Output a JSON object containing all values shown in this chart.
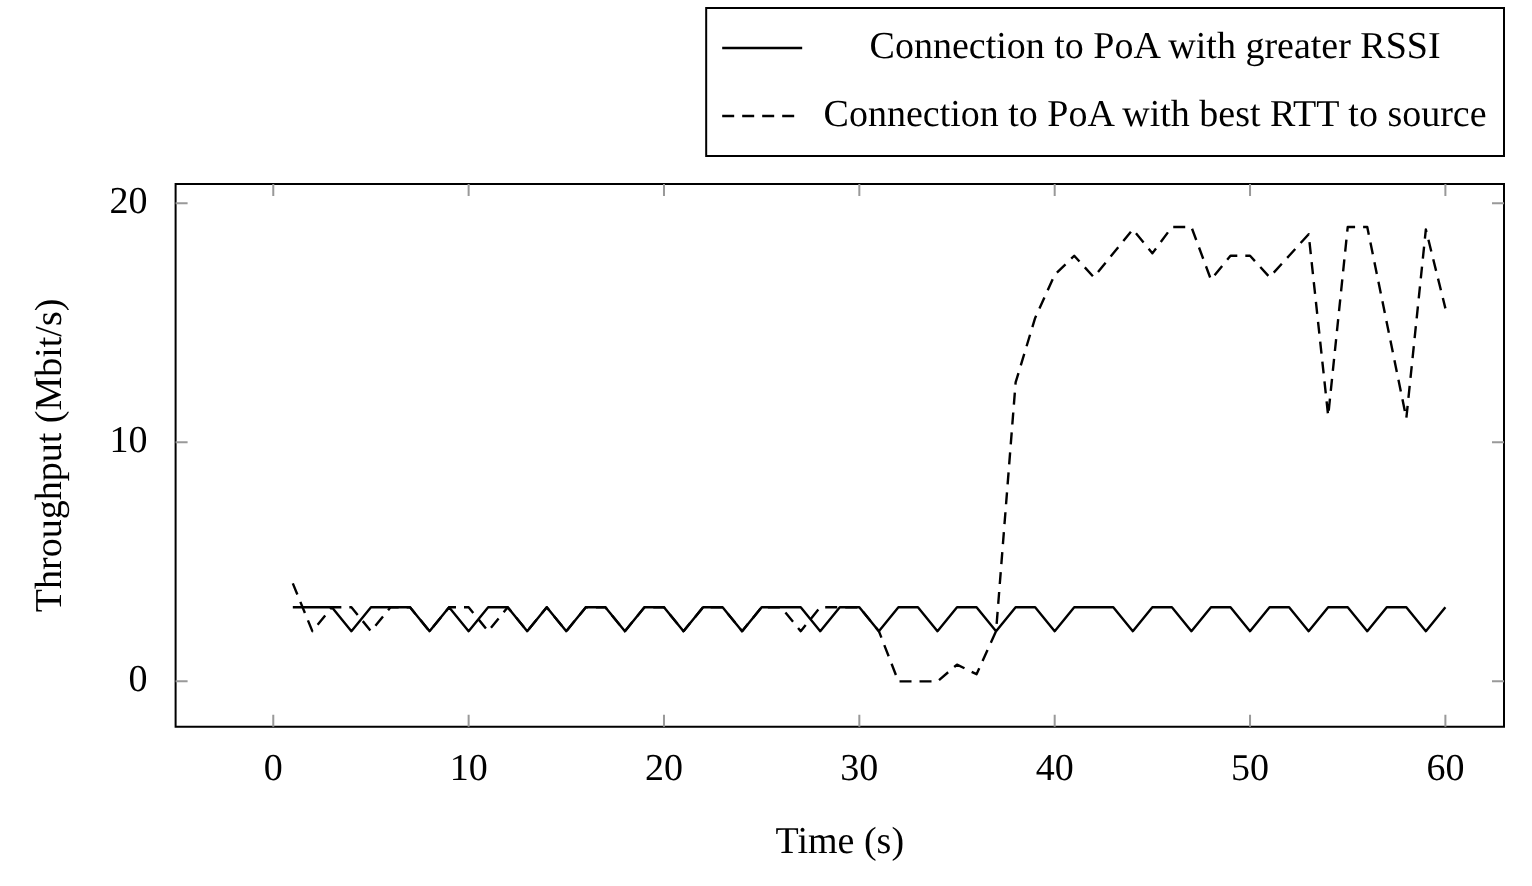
{
  "chart_data": {
    "type": "line",
    "xlabel": "Time (s)",
    "ylabel": "Throughput (Mbit/s)",
    "x": [
      1,
      2,
      3,
      4,
      5,
      6,
      7,
      8,
      9,
      10,
      11,
      12,
      13,
      14,
      15,
      16,
      17,
      18,
      19,
      20,
      21,
      22,
      23,
      24,
      25,
      26,
      27,
      28,
      29,
      30,
      31,
      32,
      33,
      34,
      35,
      36,
      37,
      38,
      39,
      40,
      41,
      42,
      43,
      44,
      45,
      46,
      47,
      48,
      49,
      50,
      51,
      52,
      53,
      54,
      55,
      56,
      57,
      58,
      59,
      60
    ],
    "series": [
      {
        "name": "Connection to PoA with greater RSSI",
        "color": "#000000",
        "line_style": "solid",
        "values": [
          3.1,
          3.1,
          3.1,
          2.1,
          3.1,
          3.1,
          3.1,
          2.1,
          3.1,
          2.1,
          3.1,
          3.1,
          2.1,
          3.1,
          2.1,
          3.1,
          3.1,
          2.1,
          3.1,
          3.1,
          2.1,
          3.1,
          3.1,
          2.1,
          3.1,
          3.1,
          3.1,
          2.1,
          3.1,
          3.1,
          2.1,
          3.1,
          3.1,
          2.1,
          3.1,
          3.1,
          2.1,
          3.1,
          3.1,
          2.1,
          3.1,
          3.1,
          3.1,
          2.1,
          3.1,
          3.1,
          2.1,
          3.1,
          3.1,
          2.1,
          3.1,
          3.1,
          2.1,
          3.1,
          3.1,
          2.1,
          3.1,
          3.1,
          2.1,
          3.1
        ]
      },
      {
        "name": "Connection to PoA with best RTT to source",
        "color": "#000000",
        "line_style": "dashed",
        "values": [
          4.1,
          2.1,
          3.1,
          3.1,
          2.1,
          3.1,
          3.1,
          2.1,
          3.1,
          3.1,
          2.1,
          3.1,
          2.1,
          3.1,
          2.1,
          3.1,
          3.1,
          2.1,
          3.1,
          3.1,
          2.1,
          3.1,
          3.1,
          2.1,
          3.1,
          3.1,
          2.1,
          3.1,
          3.1,
          3.1,
          2.1,
          0,
          0,
          0,
          0.7,
          0.3,
          2.1,
          12.5,
          15.2,
          17,
          17.8,
          16.9,
          17.9,
          18.9,
          17.9,
          19,
          19,
          16.8,
          17.8,
          17.8,
          16.9,
          17.8,
          18.7,
          11.1,
          19,
          19,
          15,
          11,
          18.9,
          15.6
        ]
      }
    ],
    "xlim": [
      -5,
      63
    ],
    "xticks": [
      0,
      10,
      20,
      30,
      40,
      50,
      60
    ],
    "ylim": [
      -1.9,
      20.8
    ],
    "yticks": [
      0,
      10,
      20
    ],
    "grid": false,
    "legend": "top right",
    "marker": "none"
  }
}
